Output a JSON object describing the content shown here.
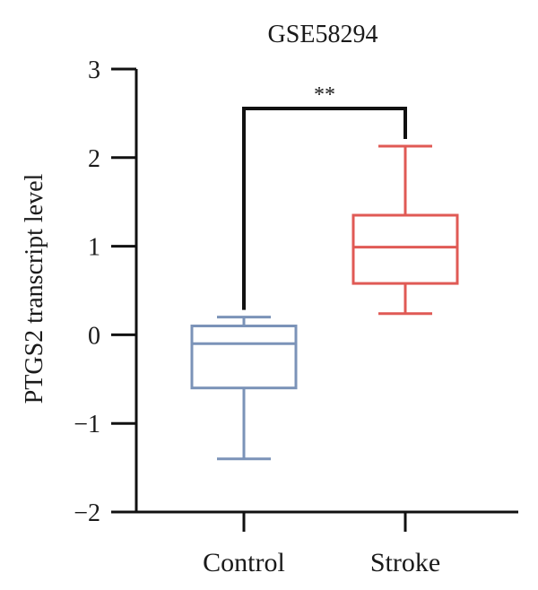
{
  "chart_data": {
    "type": "box",
    "title": "GSE58294",
    "ylabel": "PTGS2 transcript level",
    "xlabel": "",
    "ylim": [
      -2,
      3
    ],
    "yticks": [
      3,
      2,
      1,
      0,
      -1,
      -2
    ],
    "ytick_labels": [
      "3",
      "2",
      "1",
      "0",
      "−1",
      "−2"
    ],
    "grid": false,
    "categories": [
      "Control",
      "Stroke"
    ],
    "boxes": [
      {
        "category": "Control",
        "whisker_low": -1.4,
        "q1": -0.6,
        "median": -0.1,
        "q3": 0.1,
        "whisker_high": 0.2,
        "color": "#7b93b8"
      },
      {
        "category": "Stroke",
        "whisker_low": 0.24,
        "q1": 0.58,
        "median": 0.99,
        "q3": 1.35,
        "whisker_high": 2.13,
        "color": "#e05a55"
      }
    ],
    "significance": {
      "label": "**",
      "between": [
        "Control",
        "Stroke"
      ]
    }
  }
}
